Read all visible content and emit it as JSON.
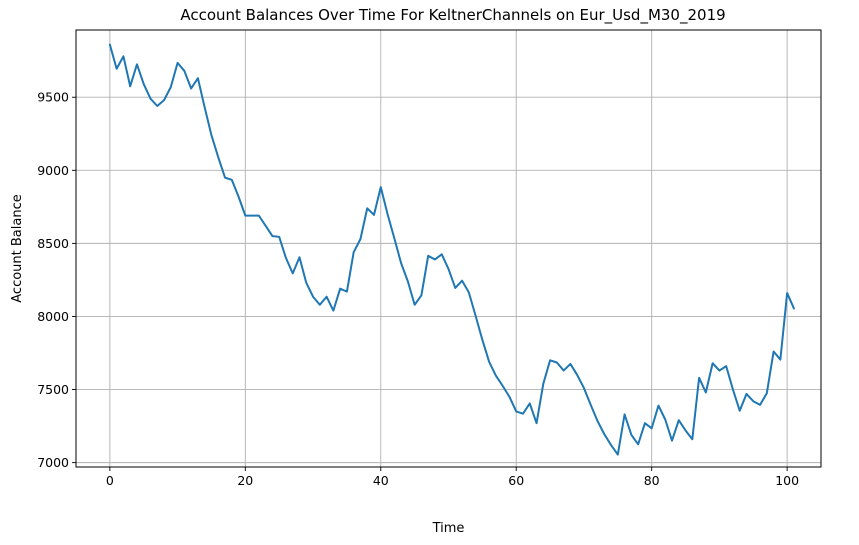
{
  "chart_data": {
    "type": "line",
    "title": "Account Balances Over Time For KeltnerChannels on Eur_Usd_M30_2019",
    "xlabel": "Time",
    "ylabel": "Account Balance",
    "xlim": [
      -5,
      105
    ],
    "ylim": [
      6970,
      9960
    ],
    "xticks": [
      0,
      20,
      40,
      60,
      80,
      100
    ],
    "yticks": [
      7000,
      7500,
      8000,
      8500,
      9000,
      9500
    ],
    "grid": true,
    "line_color": "#1f77b4",
    "series": [
      {
        "values": [
          9860,
          9695,
          9780,
          9575,
          9725,
          9590,
          9490,
          9440,
          9480,
          9570,
          9735,
          9680,
          9560,
          9630,
          9430,
          9240,
          9090,
          8950,
          8935,
          8820,
          8690,
          8690,
          8690,
          8620,
          8550,
          8545,
          8400,
          8295,
          8405,
          8230,
          8135,
          8080,
          8135,
          8040,
          8190,
          8170,
          8440,
          8530,
          8740,
          8695,
          8885,
          8700,
          8535,
          8365,
          8240,
          8080,
          8145,
          8415,
          8390,
          8425,
          8325,
          8195,
          8245,
          8165,
          8005,
          7840,
          7690,
          7595,
          7525,
          7450,
          7350,
          7335,
          7405,
          7270,
          7540,
          7700,
          7685,
          7630,
          7675,
          7600,
          7510,
          7395,
          7285,
          7195,
          7120,
          7055,
          7330,
          7190,
          7125,
          7270,
          7235,
          7390,
          7295,
          7150,
          7290,
          7220,
          7160,
          7580,
          7480,
          7680,
          7630,
          7660,
          7500,
          7355,
          7470,
          7420,
          7395,
          7475,
          7760,
          7705,
          8160,
          8055
        ]
      }
    ]
  }
}
